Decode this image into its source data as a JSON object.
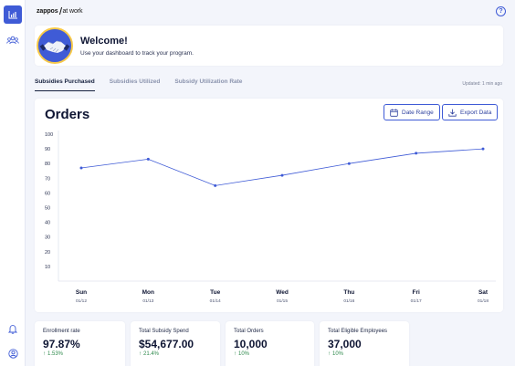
{
  "brand": {
    "name": "zappos",
    "suffix": "at work"
  },
  "welcome": {
    "title": "Welcome!",
    "subtitle": "Use your dashboard to track your program."
  },
  "tabs": [
    {
      "label": "Subsidies Purchased",
      "active": true
    },
    {
      "label": "Subsidies Utilized",
      "active": false
    },
    {
      "label": "Subsidy Utilization Rate",
      "active": false
    }
  ],
  "updated_text": "Updated: 1 min ago",
  "chart_card": {
    "title": "Orders",
    "date_range_label": "Date Range",
    "export_label": "Export Data"
  },
  "chart_data": {
    "type": "line",
    "categories": [
      "Sun",
      "Mon",
      "Tue",
      "Wed",
      "Thu",
      "Fri",
      "Sat"
    ],
    "dates": [
      "01/12",
      "01/13",
      "01/14",
      "01/15",
      "01/16",
      "01/17",
      "01/18"
    ],
    "values": [
      77,
      83,
      65,
      72,
      80,
      87,
      90
    ],
    "yticks": [
      10,
      20,
      30,
      40,
      50,
      60,
      70,
      80,
      90,
      100
    ],
    "ylim": [
      0,
      100
    ],
    "color": "#3f5bd6",
    "grid": false
  },
  "kpis": [
    {
      "label": "Enrollment rate",
      "value": "97.87%",
      "delta": "1.53%"
    },
    {
      "label": "Total Subsidy Spend",
      "value": "$54,677.00",
      "delta": "21.4%"
    },
    {
      "label": "Total Orders",
      "value": "10,000",
      "delta": "10%"
    },
    {
      "label": "Total Eligible Employees",
      "value": "37,000",
      "delta": "10%"
    }
  ],
  "colors": {
    "accent": "#3f5bd6",
    "positive": "#2f8a4d",
    "background": "#f3f5fb"
  },
  "icons": [
    "dashboard-icon",
    "people-icon",
    "bell-icon",
    "user-icon",
    "help-icon",
    "calendar-icon",
    "download-icon"
  ]
}
